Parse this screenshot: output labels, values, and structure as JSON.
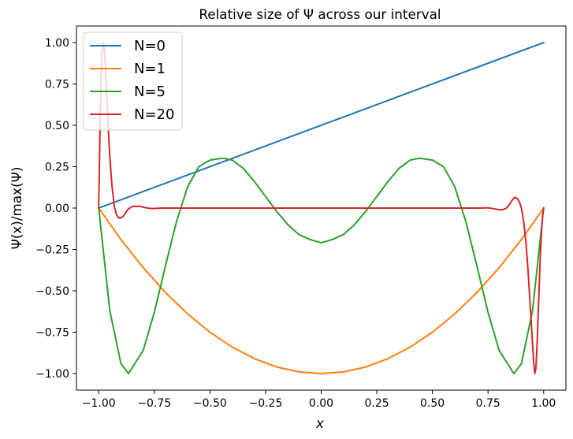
{
  "chart_data": {
    "type": "line",
    "title": "Relative size of Ψ across our interval",
    "xlabel": "x",
    "ylabel": "Ψ(x)/max(Ψ)",
    "xlim": [
      -1.1,
      1.1
    ],
    "ylim": [
      -1.1,
      1.1
    ],
    "xticks": [
      -1.0,
      -0.75,
      -0.5,
      -0.25,
      0.0,
      0.25,
      0.5,
      0.75,
      1.0
    ],
    "xtick_labels": [
      "−1.00",
      "−0.75",
      "−0.50",
      "−0.25",
      "0.00",
      "0.25",
      "0.50",
      "0.75",
      "1.00"
    ],
    "yticks": [
      1.0,
      0.75,
      0.5,
      0.25,
      0.0,
      -0.25,
      -0.5,
      -0.75,
      -1.0
    ],
    "ytick_labels": [
      "1.00",
      "0.75",
      "0.50",
      "0.25",
      "0.00",
      "−0.25",
      "−0.50",
      "−0.75",
      "−1.00"
    ],
    "grid": false,
    "legend_position": "top-left",
    "series": [
      {
        "name": "N=0",
        "color": "#1f77b4",
        "x": [
          -1.0,
          1.0
        ],
        "y": [
          0.0,
          1.0
        ]
      },
      {
        "name": "N=1",
        "color": "#ff7f0e",
        "x": [
          -1.0,
          -0.9,
          -0.8,
          -0.7,
          -0.6,
          -0.5,
          -0.4,
          -0.3,
          -0.2,
          -0.1,
          0.0,
          0.1,
          0.2,
          0.3,
          0.4,
          0.5,
          0.6,
          0.7,
          0.8,
          0.9,
          1.0
        ],
        "y": [
          0.0,
          -0.19,
          -0.36,
          -0.51,
          -0.64,
          -0.75,
          -0.84,
          -0.91,
          -0.96,
          -0.99,
          -1.0,
          -0.99,
          -0.96,
          -0.91,
          -0.84,
          -0.75,
          -0.64,
          -0.51,
          -0.36,
          -0.19,
          0.0
        ]
      },
      {
        "name": "N=5",
        "color": "#2ca02c",
        "x": [
          -1.0,
          -0.95,
          -0.9,
          -0.866,
          -0.8,
          -0.75,
          -0.7,
          -0.65,
          -0.6,
          -0.55,
          -0.5,
          -0.45,
          -0.436,
          -0.4,
          -0.35,
          -0.3,
          -0.25,
          -0.2,
          -0.15,
          -0.1,
          -0.05,
          0.0,
          0.05,
          0.1,
          0.15,
          0.2,
          0.25,
          0.3,
          0.35,
          0.4,
          0.436,
          0.45,
          0.5,
          0.55,
          0.6,
          0.65,
          0.7,
          0.75,
          0.8,
          0.866,
          0.9,
          0.95,
          1.0
        ],
        "y": [
          0.0,
          -0.62,
          -0.94,
          -1.0,
          -0.86,
          -0.63,
          -0.35,
          -0.08,
          0.13,
          0.25,
          0.29,
          0.3,
          0.3,
          0.29,
          0.24,
          0.16,
          0.07,
          -0.02,
          -0.1,
          -0.16,
          -0.19,
          -0.21,
          -0.19,
          -0.16,
          -0.1,
          -0.02,
          0.07,
          0.16,
          0.24,
          0.29,
          0.3,
          0.3,
          0.29,
          0.25,
          0.13,
          -0.08,
          -0.35,
          -0.63,
          -0.86,
          -1.0,
          -0.94,
          -0.62,
          0.0
        ]
      },
      {
        "name": "N=20",
        "color": "#d62728",
        "x": [
          -1.0,
          -0.995,
          -0.99,
          -0.985,
          -0.98,
          -0.975,
          -0.97,
          -0.965,
          -0.96,
          -0.955,
          -0.95,
          -0.94,
          -0.93,
          -0.92,
          -0.91,
          -0.9,
          -0.89,
          -0.88,
          -0.87,
          -0.86,
          -0.85,
          -0.84,
          -0.83,
          -0.82,
          -0.81,
          -0.8,
          -0.78,
          -0.76,
          -0.74,
          -0.72,
          -0.7,
          -0.68,
          -0.66,
          -0.64,
          -0.6,
          -0.5,
          -0.25,
          0.0,
          0.25,
          0.5,
          0.6,
          0.64,
          0.66,
          0.68,
          0.7,
          0.72,
          0.74,
          0.76,
          0.78,
          0.8,
          0.81,
          0.82,
          0.83,
          0.84,
          0.85,
          0.86,
          0.87,
          0.88,
          0.89,
          0.9,
          0.91,
          0.92,
          0.93,
          0.94,
          0.95,
          0.955,
          0.96,
          0.965,
          0.97,
          0.975,
          0.98,
          0.985,
          0.99,
          0.995,
          1.0
        ],
        "y": [
          0.0,
          0.4,
          0.75,
          0.95,
          1.0,
          0.97,
          0.86,
          0.72,
          0.57,
          0.43,
          0.31,
          0.13,
          0.01,
          -0.04,
          -0.06,
          -0.06,
          -0.05,
          -0.03,
          -0.01,
          0.0,
          0.01,
          0.01,
          0.01,
          0.01,
          0.01,
          0.005,
          0.0,
          -0.003,
          -0.002,
          0.0,
          0.0,
          0.0,
          0.0,
          0.0,
          0.0,
          0.0,
          0.0,
          0.0,
          0.0,
          0.0,
          0.0,
          0.0,
          0.0,
          0.0,
          0.0,
          0.0,
          0.002,
          0.0,
          -0.005,
          -0.01,
          -0.01,
          -0.008,
          -0.002,
          0.01,
          0.03,
          0.05,
          0.065,
          0.06,
          0.04,
          0.0,
          -0.08,
          -0.2,
          -0.38,
          -0.6,
          -0.82,
          -0.93,
          -1.0,
          -0.97,
          -0.84,
          -0.66,
          -0.47,
          -0.29,
          -0.15,
          -0.05,
          0.0
        ]
      }
    ]
  }
}
